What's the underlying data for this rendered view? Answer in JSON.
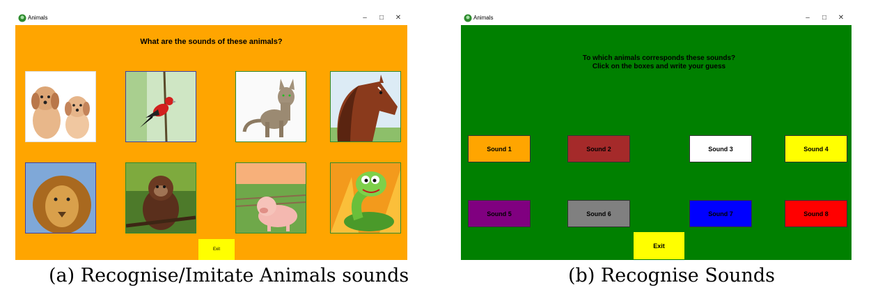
{
  "left_window": {
    "app_title": "Animals",
    "heading": "What are the sounds of these animals?",
    "background": "#FFA500",
    "tiles": [
      {
        "name": "dogs-image"
      },
      {
        "name": "bird-image"
      },
      {
        "name": "cat-image"
      },
      {
        "name": "horse-image"
      },
      {
        "name": "lion-image"
      },
      {
        "name": "monkey-image"
      },
      {
        "name": "pig-image"
      },
      {
        "name": "snake-image"
      }
    ],
    "exit_label": "Exit"
  },
  "right_window": {
    "app_title": "Animals",
    "heading": "To which animals corresponds these sounds?\nClick on the boxes and write your guess",
    "background": "#008000",
    "sounds": [
      {
        "label": "Sound 1",
        "color": "#FFA500"
      },
      {
        "label": "Sound 2",
        "color": "#A52A2A"
      },
      {
        "label": "Sound 3",
        "color": "#FFFFFF"
      },
      {
        "label": "Sound 4",
        "color": "#FFFF00"
      },
      {
        "label": "Sound 5",
        "color": "#800080"
      },
      {
        "label": "Sound 6",
        "color": "#808080"
      },
      {
        "label": "Sound 7",
        "color": "#0000FF"
      },
      {
        "label": "Sound 8",
        "color": "#FF0000"
      }
    ],
    "exit_label": "Exit"
  },
  "captions": {
    "left": "(a) Recognise/Imitate Animals sounds",
    "right": "(b) Recognise Sounds"
  },
  "window_controls": {
    "minimize": "–",
    "maximize": "□",
    "close": "✕"
  }
}
